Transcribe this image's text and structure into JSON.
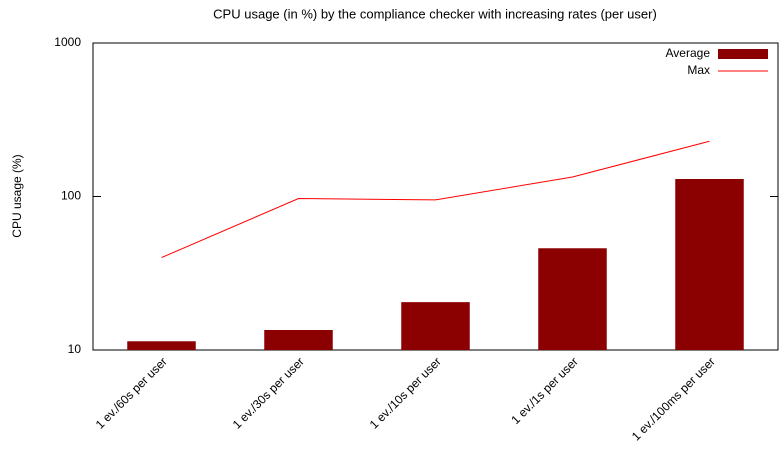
{
  "chart_data": {
    "type": "bar",
    "title": "CPU usage (in %) by the compliance checker with increasing rates (per user)",
    "ylabel": "CPU usage (%)",
    "categories": [
      "1 ev./60s per user",
      "1 ev./30s per user",
      "1 ev./10s per user",
      "1 ev./1s per user",
      "1 ev./100ms per user"
    ],
    "series": [
      {
        "name": "Average",
        "type": "bar",
        "color": "#8b0000",
        "values": [
          11.4,
          13.5,
          20.5,
          46,
          130
        ]
      },
      {
        "name": "Max",
        "type": "line",
        "color": "#ff0000",
        "values": [
          40,
          97,
          95,
          134,
          229
        ]
      }
    ],
    "ylim": [
      10,
      1000
    ],
    "yticks": [
      10,
      100,
      1000
    ],
    "log_y": true,
    "grid": false,
    "legend": "top right"
  }
}
